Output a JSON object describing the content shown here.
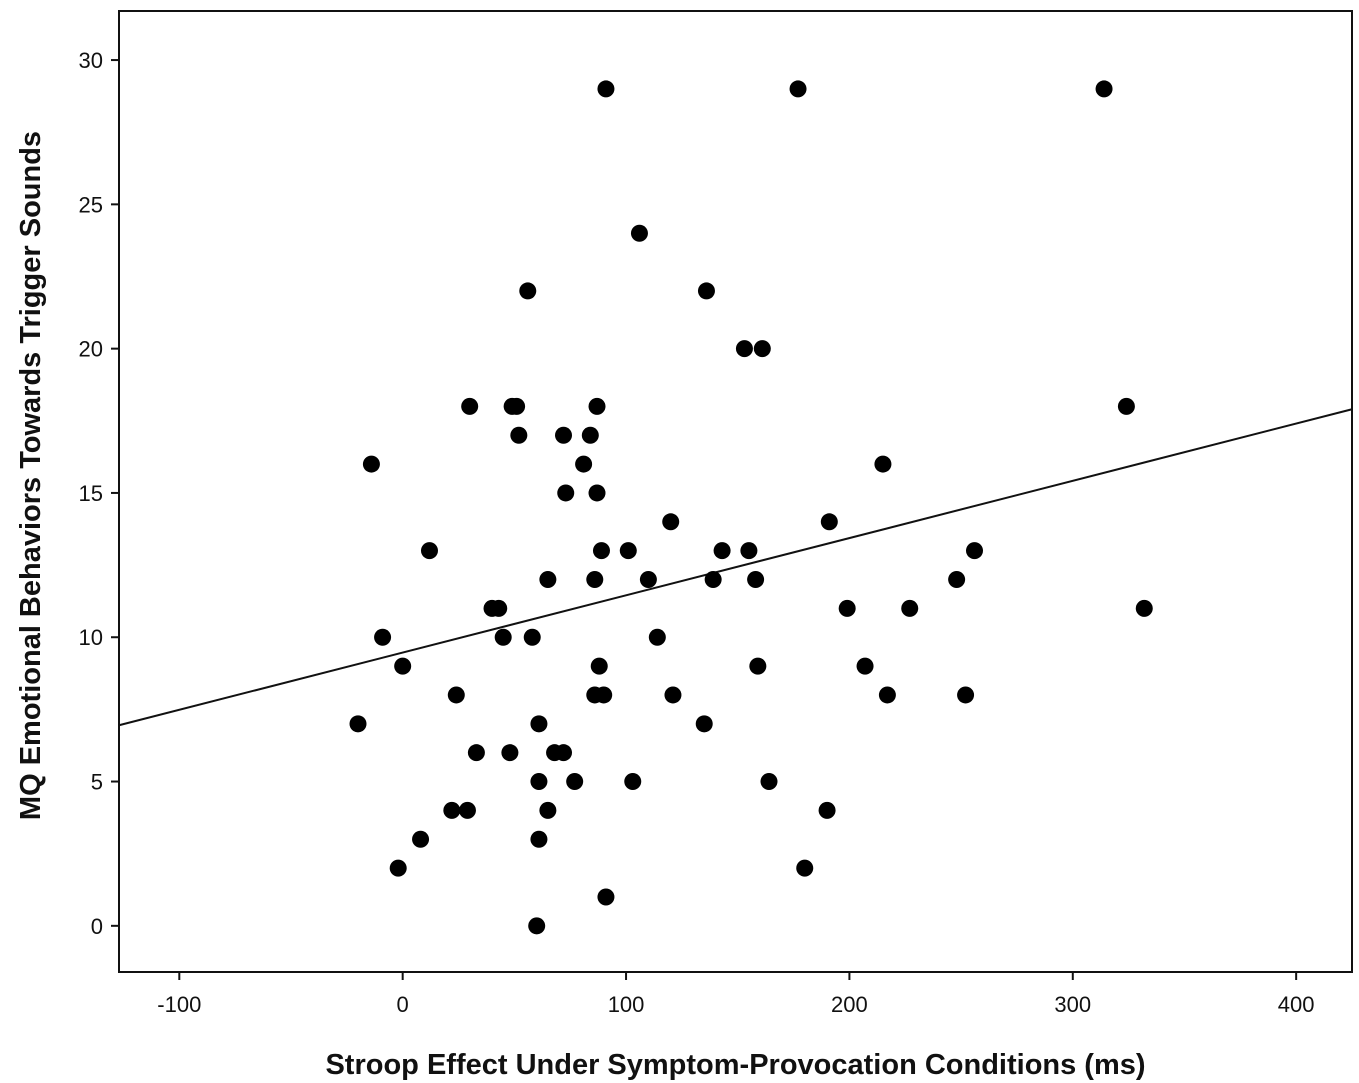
{
  "chart_data": {
    "type": "scatter",
    "xlabel": "Stroop Effect Under Symptom-Provocation Conditions (ms)",
    "ylabel": "MQ Emotional Behaviors Towards Trigger Sounds",
    "xlim": [
      -127,
      425
    ],
    "ylim": [
      -1.6,
      31.7
    ],
    "xticks": [
      -100,
      0,
      100,
      200,
      300,
      400
    ],
    "yticks": [
      0,
      5,
      10,
      15,
      20,
      25,
      30
    ],
    "grid": false,
    "legend": "none",
    "marker_color": "#000000",
    "fit_line": {
      "x": [
        -127,
        425
      ],
      "y": [
        6.95,
        17.9
      ]
    },
    "points": [
      [
        -20,
        7
      ],
      [
        -14,
        16
      ],
      [
        -9,
        10
      ],
      [
        -2,
        2
      ],
      [
        0,
        9
      ],
      [
        8,
        3
      ],
      [
        12,
        13
      ],
      [
        22,
        4
      ],
      [
        24,
        8
      ],
      [
        29,
        4
      ],
      [
        30,
        18
      ],
      [
        33,
        6
      ],
      [
        40,
        11
      ],
      [
        43,
        11
      ],
      [
        45,
        10
      ],
      [
        48,
        6
      ],
      [
        49,
        18
      ],
      [
        51,
        18
      ],
      [
        52,
        17
      ],
      [
        56,
        22
      ],
      [
        58,
        10
      ],
      [
        60,
        0
      ],
      [
        61,
        5
      ],
      [
        61,
        7
      ],
      [
        61,
        3
      ],
      [
        65,
        4
      ],
      [
        65,
        12
      ],
      [
        68,
        6
      ],
      [
        72,
        17
      ],
      [
        72,
        6
      ],
      [
        73,
        15
      ],
      [
        77,
        5
      ],
      [
        81,
        16
      ],
      [
        84,
        17
      ],
      [
        86,
        12
      ],
      [
        86,
        8
      ],
      [
        87,
        18
      ],
      [
        87,
        15
      ],
      [
        88,
        9
      ],
      [
        89,
        13
      ],
      [
        90,
        8
      ],
      [
        91,
        29
      ],
      [
        91,
        1
      ],
      [
        101,
        13
      ],
      [
        103,
        5
      ],
      [
        106,
        24
      ],
      [
        110,
        12
      ],
      [
        114,
        10
      ],
      [
        120,
        14
      ],
      [
        121,
        8
      ],
      [
        135,
        7
      ],
      [
        136,
        22
      ],
      [
        139,
        12
      ],
      [
        143,
        13
      ],
      [
        153,
        20
      ],
      [
        155,
        13
      ],
      [
        158,
        12
      ],
      [
        159,
        9
      ],
      [
        161,
        20
      ],
      [
        164,
        5
      ],
      [
        177,
        29
      ],
      [
        180,
        2
      ],
      [
        190,
        4
      ],
      [
        191,
        14
      ],
      [
        199,
        11
      ],
      [
        207,
        9
      ],
      [
        215,
        16
      ],
      [
        217,
        8
      ],
      [
        227,
        11
      ],
      [
        248,
        12
      ],
      [
        252,
        8
      ],
      [
        256,
        13
      ],
      [
        314,
        29
      ],
      [
        324,
        18
      ],
      [
        332,
        11
      ]
    ]
  }
}
